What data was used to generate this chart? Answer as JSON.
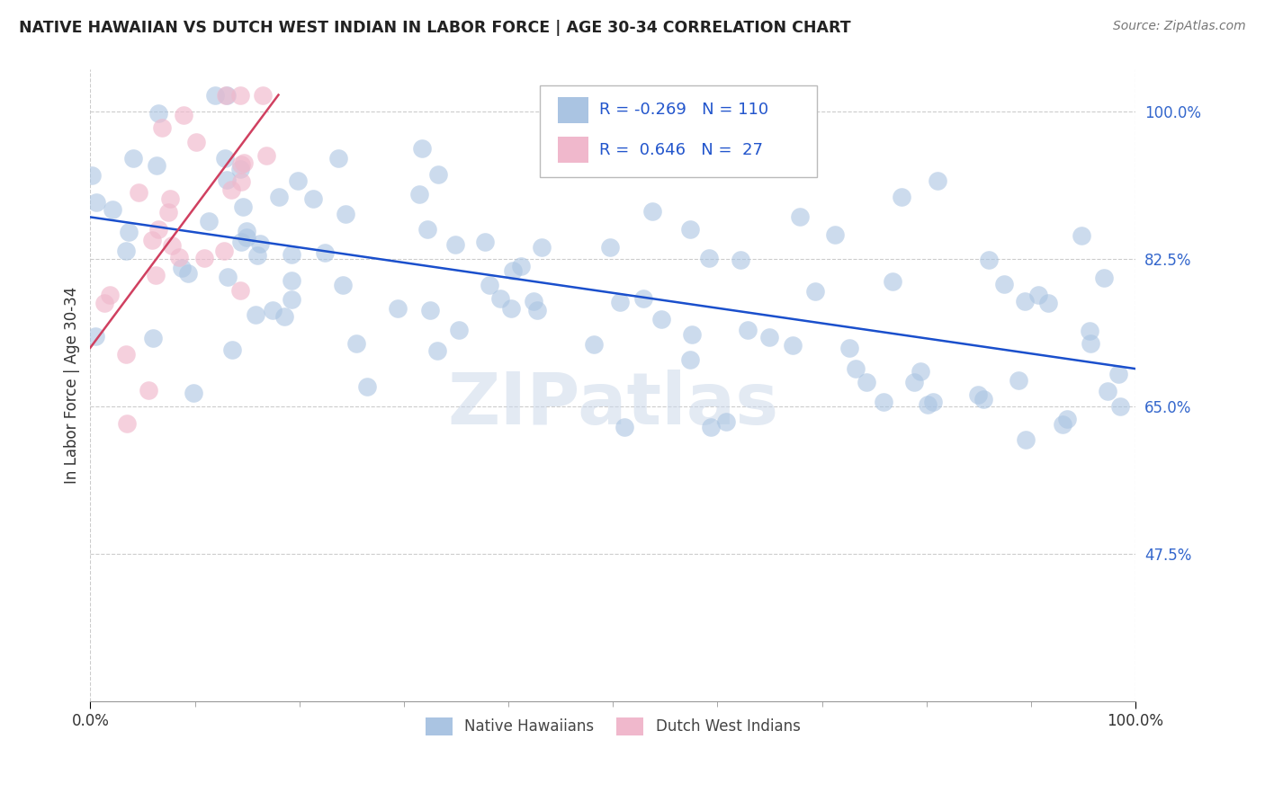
{
  "title": "NATIVE HAWAIIAN VS DUTCH WEST INDIAN IN LABOR FORCE | AGE 30-34 CORRELATION CHART",
  "source_text": "Source: ZipAtlas.com",
  "ylabel": "In Labor Force | Age 30-34",
  "xlim": [
    0.0,
    1.0
  ],
  "ylim": [
    0.3,
    1.05
  ],
  "yticks": [
    0.475,
    0.65,
    0.825,
    1.0
  ],
  "ytick_labels": [
    "47.5%",
    "65.0%",
    "82.5%",
    "100.0%"
  ],
  "xticks": [
    0.0,
    1.0
  ],
  "xtick_labels": [
    "0.0%",
    "100.0%"
  ],
  "legend_r1": "-0.269",
  "legend_n1": "110",
  "legend_r2": "0.646",
  "legend_n2": "27",
  "blue_color": "#aac4e2",
  "pink_color": "#f0b8cc",
  "line_blue": "#1a4fcc",
  "line_pink": "#d04060",
  "watermark": "ZIPatlas",
  "blue_line_start_y": 0.875,
  "blue_line_end_y": 0.695,
  "pink_line_start_x": 0.0,
  "pink_line_start_y": 0.72,
  "pink_line_end_x": 0.18,
  "pink_line_end_y": 1.02
}
